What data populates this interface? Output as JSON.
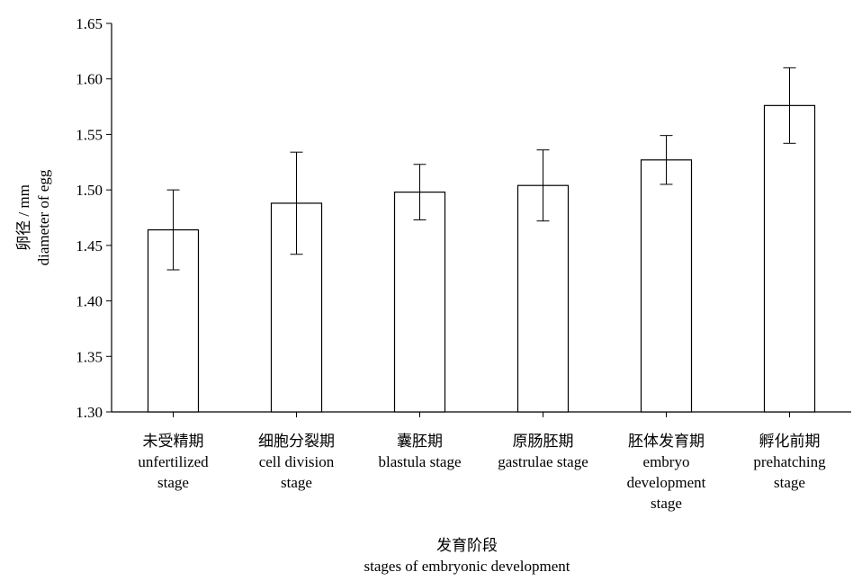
{
  "chart_data": {
    "type": "bar",
    "title": "",
    "xlabel": [
      "发育阶段",
      "stages of embryonic development"
    ],
    "ylabel": [
      "卵径 / mm",
      "diameter of egg"
    ],
    "ylim": [
      1.3,
      1.65
    ],
    "yticks": [
      "1.30",
      "1.35",
      "1.40",
      "1.45",
      "1.50",
      "1.55",
      "1.60",
      "1.65"
    ],
    "ytick_values": [
      1.3,
      1.35,
      1.4,
      1.45,
      1.5,
      1.55,
      1.6,
      1.65
    ],
    "categories": [
      [
        "未受精期",
        "unfertilized",
        "stage"
      ],
      [
        "细胞分裂期",
        "cell division",
        "stage"
      ],
      [
        "囊胚期",
        "blastula stage"
      ],
      [
        "原肠胚期",
        "gastrulae stage"
      ],
      [
        "胚体发育期",
        "embryo",
        "development",
        "stage"
      ],
      [
        "孵化前期",
        "prehatching",
        "stage"
      ]
    ],
    "values": [
      1.464,
      1.488,
      1.498,
      1.504,
      1.527,
      1.576
    ],
    "errors": [
      0.036,
      0.046,
      0.025,
      0.032,
      0.022,
      0.034
    ],
    "grid": false,
    "bar_fill": "#ffffff",
    "stroke_color": "#000000"
  }
}
